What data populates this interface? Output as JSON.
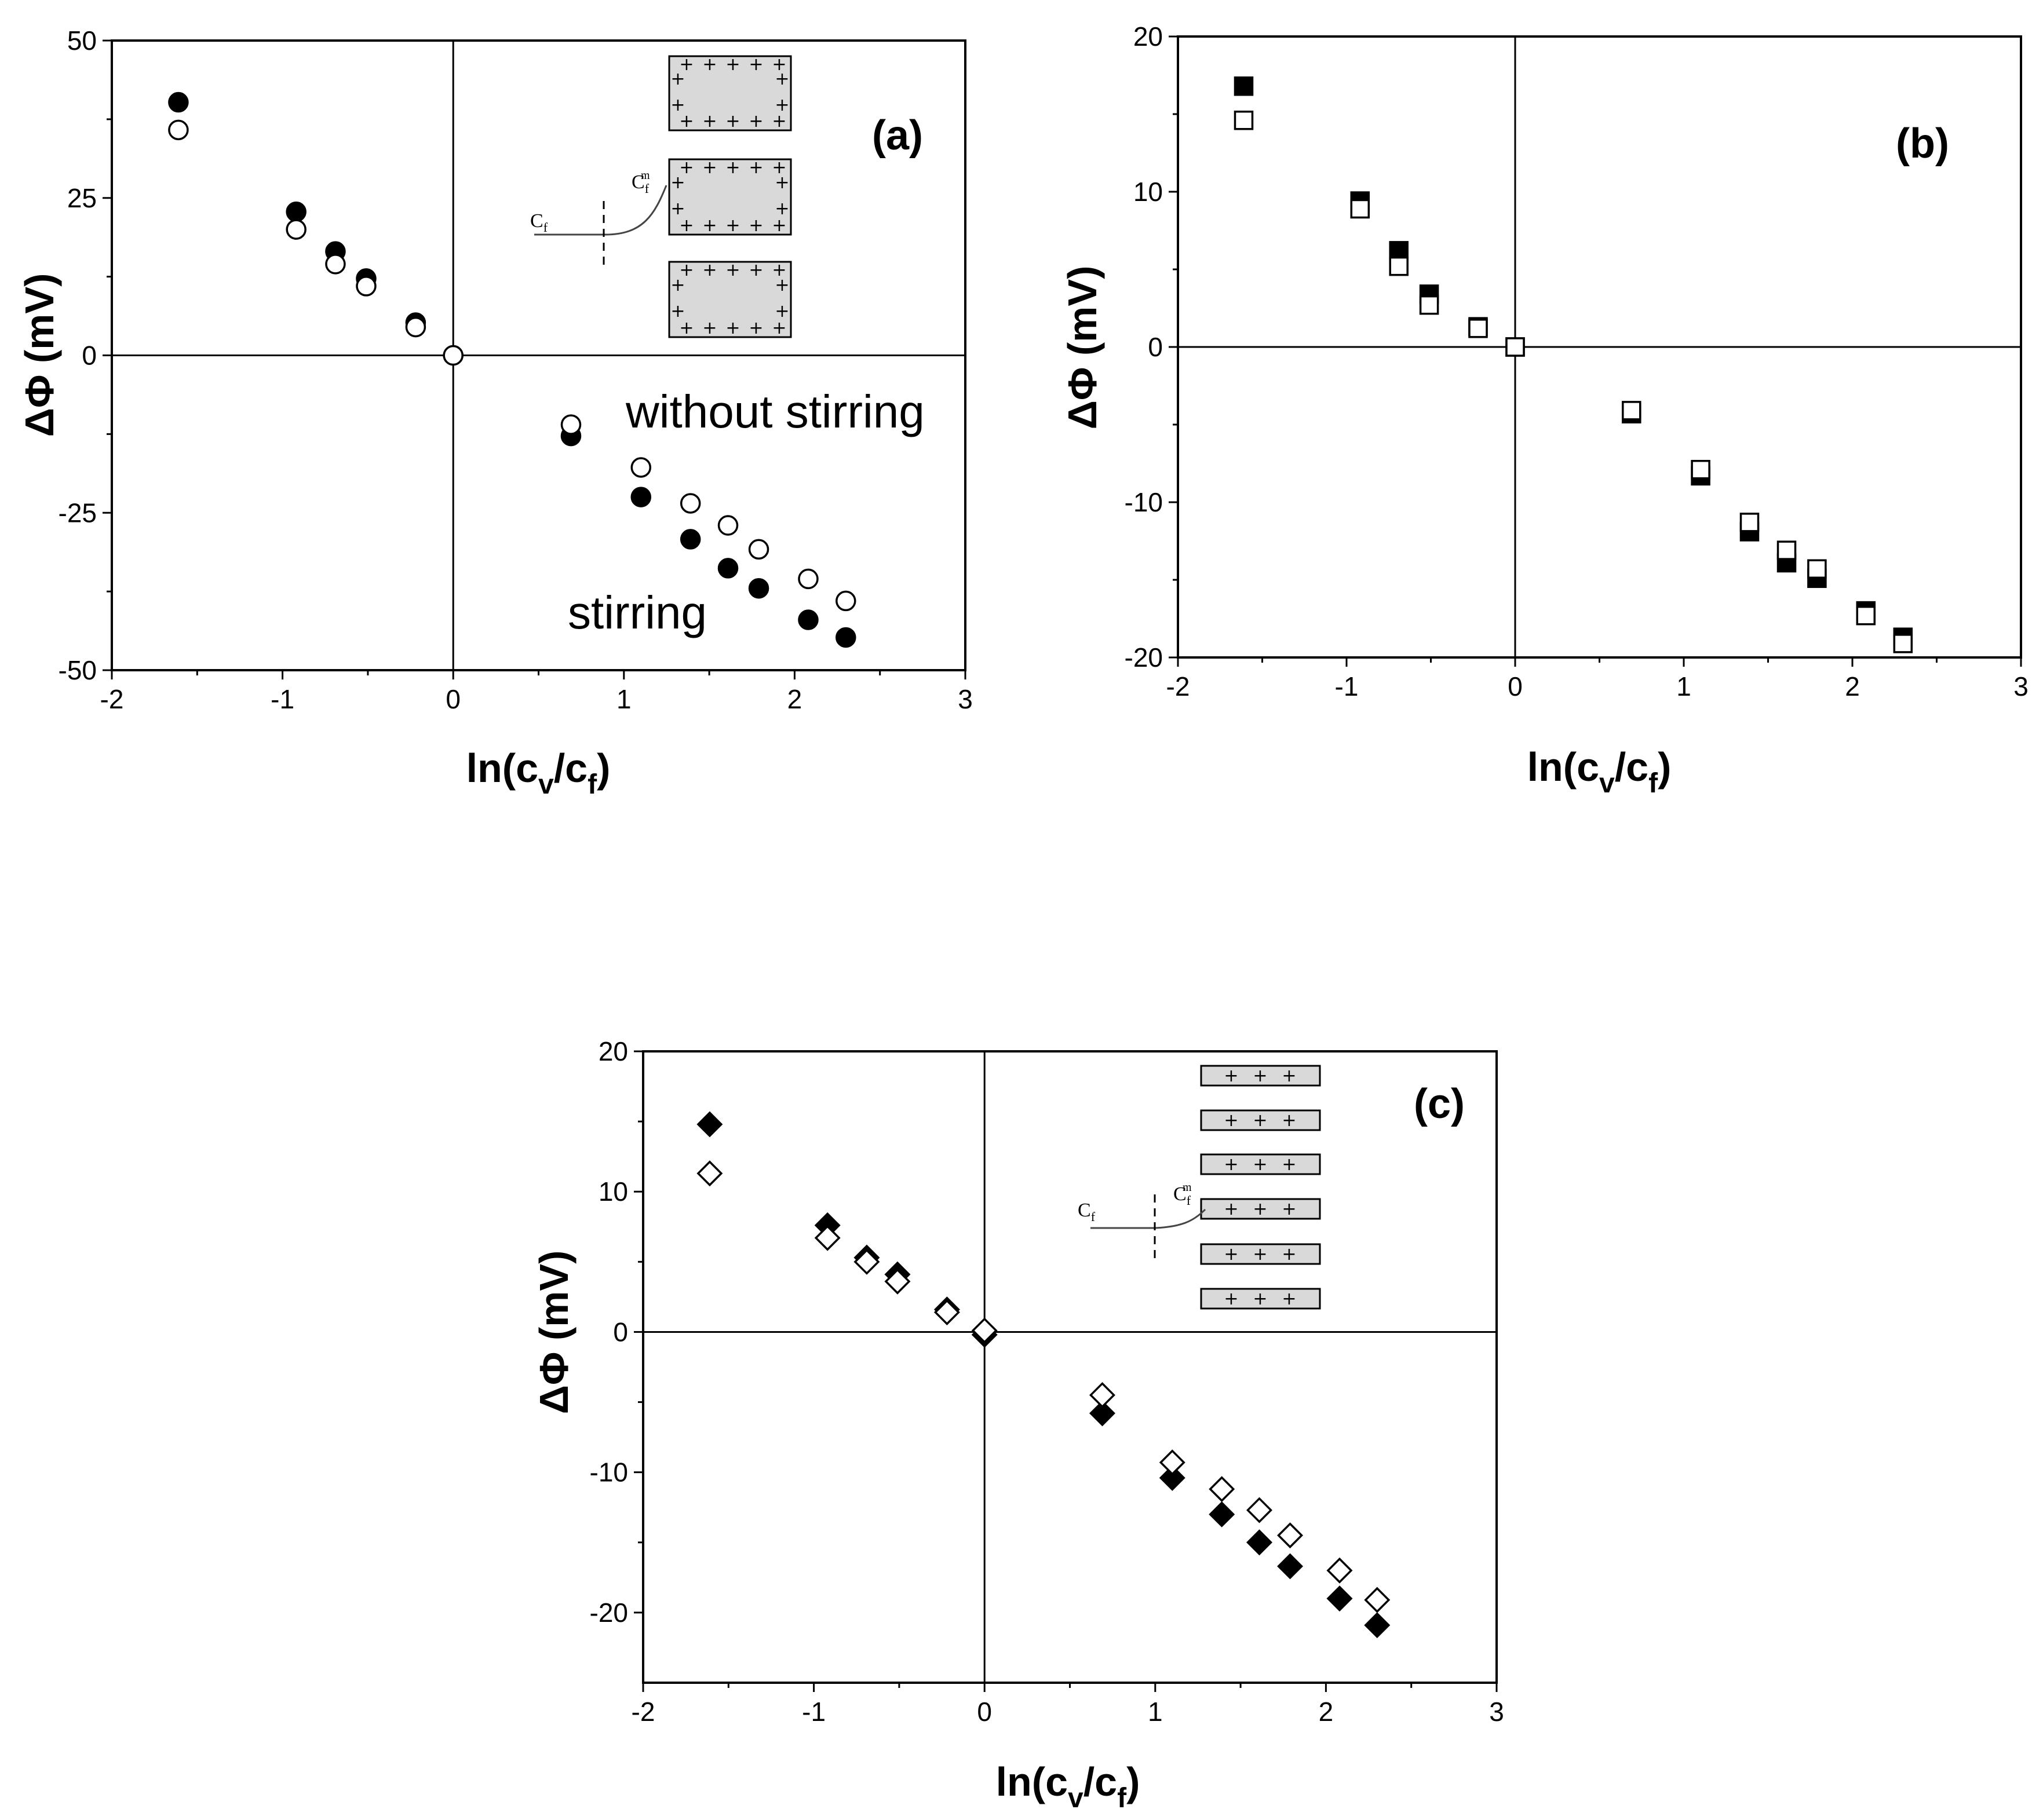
{
  "chart_data": [
    {
      "type": "scatter",
      "panel": "(a)",
      "xlabel": "ln(c_v/c_f)",
      "ylabel": "ΔΦ (mV)",
      "xlim": [
        -2,
        3
      ],
      "ylim": [
        -50,
        50
      ],
      "xticks": [
        -2,
        -1,
        0,
        1,
        2,
        3
      ],
      "yticks": [
        -50,
        -25,
        0,
        25,
        50
      ],
      "marker": "circle",
      "annotations": [
        "without stirring",
        "stirring"
      ],
      "inset_labels": {
        "cf": "C",
        "cf_sub": "f",
        "cfm_sup": "m"
      },
      "series": [
        {
          "name": "stirring",
          "filled": true,
          "x": [
            -1.61,
            -0.92,
            -0.69,
            -0.51,
            -0.22,
            0,
            0.69,
            1.1,
            1.39,
            1.61,
            1.79,
            2.08,
            2.3
          ],
          "y": [
            40.2,
            22.8,
            16.5,
            12.2,
            5.2,
            0,
            -12.8,
            -22.5,
            -29.2,
            -33.8,
            -37.0,
            -42.0,
            -44.8
          ]
        },
        {
          "name": "without stirring",
          "filled": false,
          "x": [
            -1.61,
            -0.92,
            -0.69,
            -0.51,
            -0.22,
            0,
            0.69,
            1.1,
            1.39,
            1.61,
            1.79,
            2.08,
            2.3
          ],
          "y": [
            35.8,
            20.0,
            14.5,
            11.0,
            4.5,
            0,
            -11.0,
            -17.8,
            -23.5,
            -27.0,
            -30.8,
            -35.5,
            -39.0
          ]
        }
      ]
    },
    {
      "type": "scatter",
      "panel": "(b)",
      "xlabel": "ln(c_v/c_f)",
      "ylabel": "ΔΦ (mV)",
      "xlim": [
        -2,
        3
      ],
      "ylim": [
        -20,
        20
      ],
      "xticks": [
        -2,
        -1,
        0,
        1,
        2,
        3
      ],
      "yticks": [
        -20,
        -10,
        0,
        10,
        20
      ],
      "marker": "square",
      "series": [
        {
          "name": "filled",
          "filled": true,
          "x": [
            -1.61,
            -0.92,
            -0.69,
            -0.51,
            -0.22,
            0,
            0.69,
            1.1,
            1.39,
            1.61,
            1.79,
            2.08,
            2.3
          ],
          "y": [
            16.8,
            9.4,
            6.2,
            3.4,
            1.3,
            0,
            -4.3,
            -8.3,
            -11.9,
            -13.9,
            -14.9,
            -17.0,
            -18.7
          ]
        },
        {
          "name": "open",
          "filled": false,
          "x": [
            -1.61,
            -0.92,
            -0.69,
            -0.51,
            -0.22,
            0,
            0.69,
            1.1,
            1.39,
            1.61,
            1.79,
            2.08,
            2.3
          ],
          "y": [
            14.6,
            8.9,
            5.2,
            2.7,
            1.2,
            0,
            -4.1,
            -7.9,
            -11.3,
            -13.1,
            -14.3,
            -17.3,
            -19.1
          ]
        }
      ]
    },
    {
      "type": "scatter",
      "panel": "(c)",
      "xlabel": "ln(c_v/c_f)",
      "ylabel": "ΔΦ (mV)",
      "xlim": [
        -2,
        3
      ],
      "ylim": [
        -25,
        20
      ],
      "xticks": [
        -2,
        -1,
        0,
        1,
        2,
        3
      ],
      "yticks": [
        -20,
        -10,
        0,
        10,
        20
      ],
      "marker": "diamond",
      "inset_labels": {
        "cf": "C",
        "cf_sub": "f",
        "cfm_sup": "m"
      },
      "series": [
        {
          "name": "filled",
          "filled": true,
          "x": [
            -1.61,
            -0.92,
            -0.69,
            -0.51,
            -0.22,
            0,
            0.69,
            1.1,
            1.39,
            1.61,
            1.79,
            2.08,
            2.3
          ],
          "y": [
            14.8,
            7.6,
            5.3,
            4.1,
            1.6,
            -0.2,
            -5.8,
            -10.4,
            -13.0,
            -15.0,
            -16.7,
            -19.0,
            -20.9
          ]
        },
        {
          "name": "open",
          "filled": false,
          "x": [
            -1.61,
            -0.92,
            -0.69,
            -0.51,
            -0.22,
            0,
            0.69,
            1.1,
            1.39,
            1.61,
            1.79,
            2.08,
            2.3
          ],
          "y": [
            11.3,
            6.7,
            5.0,
            3.6,
            1.4,
            0.1,
            -4.5,
            -9.3,
            -11.2,
            -12.7,
            -14.5,
            -17.0,
            -19.1
          ]
        }
      ]
    }
  ]
}
